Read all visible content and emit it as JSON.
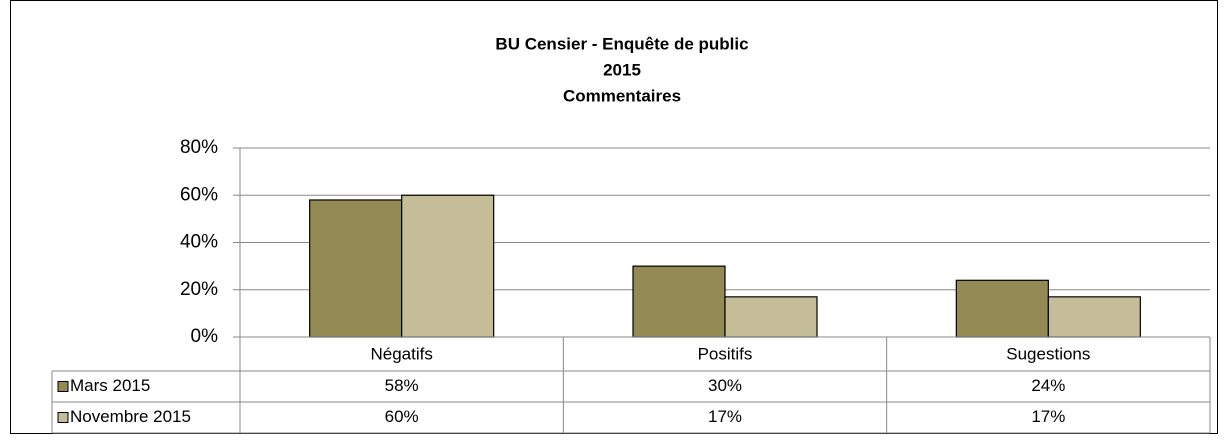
{
  "chart_data": {
    "type": "bar",
    "title": [
      "BU Censier - Enquête de public",
      "2015",
      "Commentaires"
    ],
    "categories": [
      "Négatifs",
      "Positifs",
      "Sugestions"
    ],
    "series": [
      {
        "name": "Mars 2015",
        "color": "#948a54",
        "values": [
          58,
          30,
          24
        ],
        "value_labels": [
          "58%",
          "30%",
          "24%"
        ]
      },
      {
        "name": "Novembre  2015",
        "color": "#c4bd97",
        "values": [
          60,
          17,
          17
        ],
        "value_labels": [
          "60%",
          "17%",
          "17%"
        ]
      }
    ],
    "ylim": [
      0,
      80
    ],
    "yticks": [
      {
        "value": 0,
        "label": "0%"
      },
      {
        "value": 20,
        "label": "20%"
      },
      {
        "value": 40,
        "label": "40%"
      },
      {
        "value": 60,
        "label": "60%"
      },
      {
        "value": 80,
        "label": "80%"
      }
    ],
    "grid": true
  }
}
